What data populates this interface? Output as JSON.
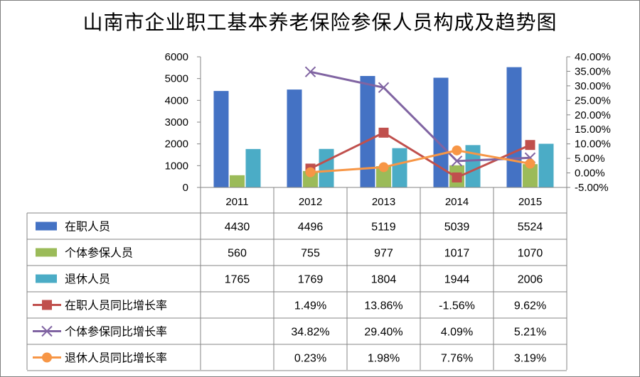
{
  "chart_data": {
    "type": "bar",
    "title": "山南市企业职工基本养老保险参保人员构成及趋势图",
    "categories": [
      "2011",
      "2012",
      "2013",
      "2014",
      "2015"
    ],
    "ylim": [
      0,
      6000
    ],
    "y_ticks": [
      "0",
      "1000",
      "2000",
      "3000",
      "4000",
      "5000",
      "6000"
    ],
    "y2lim": [
      -0.05,
      0.4
    ],
    "y2_ticks": [
      "-5.00%",
      "0.00%",
      "5.00%",
      "10.00%",
      "15.00%",
      "20.00%",
      "25.00%",
      "30.00%",
      "35.00%",
      "40.00%"
    ],
    "series": [
      {
        "name": "在职人员",
        "kind": "bar",
        "color": "#4472c4",
        "values": [
          4430,
          4496,
          5119,
          5039,
          5524
        ],
        "labels": [
          "4430",
          "4496",
          "5119",
          "5039",
          "5524"
        ]
      },
      {
        "name": "个体参保人员",
        "kind": "bar",
        "color": "#9bbb59",
        "values": [
          560,
          755,
          977,
          1017,
          1070
        ],
        "labels": [
          "560",
          "755",
          "977",
          "1017",
          "1070"
        ]
      },
      {
        "name": "退休人员",
        "kind": "bar",
        "color": "#4bacc6",
        "values": [
          1765,
          1769,
          1804,
          1944,
          2006
        ],
        "labels": [
          "1765",
          "1769",
          "1804",
          "1944",
          "2006"
        ]
      },
      {
        "name": "在职人员同比增长率",
        "kind": "line",
        "marker": "square",
        "color": "#c0504d",
        "values": [
          null,
          0.0149,
          0.1386,
          -0.0156,
          0.0962
        ],
        "labels": [
          "",
          "1.49%",
          "13.86%",
          "-1.56%",
          "9.62%"
        ]
      },
      {
        "name": "个体参保同比增长率",
        "kind": "line",
        "marker": "x",
        "color": "#8064a2",
        "values": [
          null,
          0.3482,
          0.294,
          0.0409,
          0.0521
        ],
        "labels": [
          "",
          "34.82%",
          "29.40%",
          "4.09%",
          "5.21%"
        ]
      },
      {
        "name": "退休人员同比增长率",
        "kind": "line",
        "marker": "circle",
        "color": "#f79646",
        "values": [
          null,
          0.0023,
          0.0198,
          0.0776,
          0.0319
        ],
        "labels": [
          "",
          "0.23%",
          "1.98%",
          "7.76%",
          "3.19%"
        ]
      }
    ],
    "legend": "data-table",
    "grid": false
  }
}
